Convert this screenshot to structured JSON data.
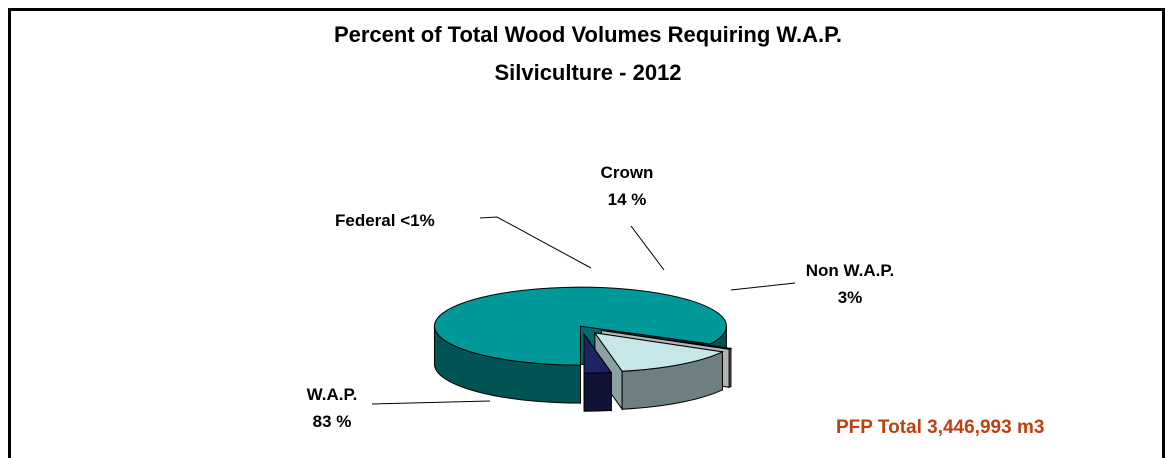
{
  "chart_data": {
    "type": "pie",
    "style": "3d-exploded",
    "title": "Percent of Total Wood Volumes Requiring W.A.P.",
    "subtitle": "Silviculture - 2012",
    "slices": [
      {
        "label": "W.A.P.",
        "value_label": "83 %",
        "value": 83,
        "color": "#009999"
      },
      {
        "label": "Federal",
        "value_label": "<1%",
        "value": 0.5,
        "color": "#ffffff"
      },
      {
        "label": "Crown",
        "value_label": "14 %",
        "value": 14,
        "color": "#c6e6e8"
      },
      {
        "label": "Non W.A.P.",
        "value_label": "3%",
        "value": 3,
        "color": "#1e2363"
      }
    ],
    "annotation": "PFP Total 3,446,993 m3",
    "annotation_color": "#c0400f",
    "legend": "none"
  }
}
